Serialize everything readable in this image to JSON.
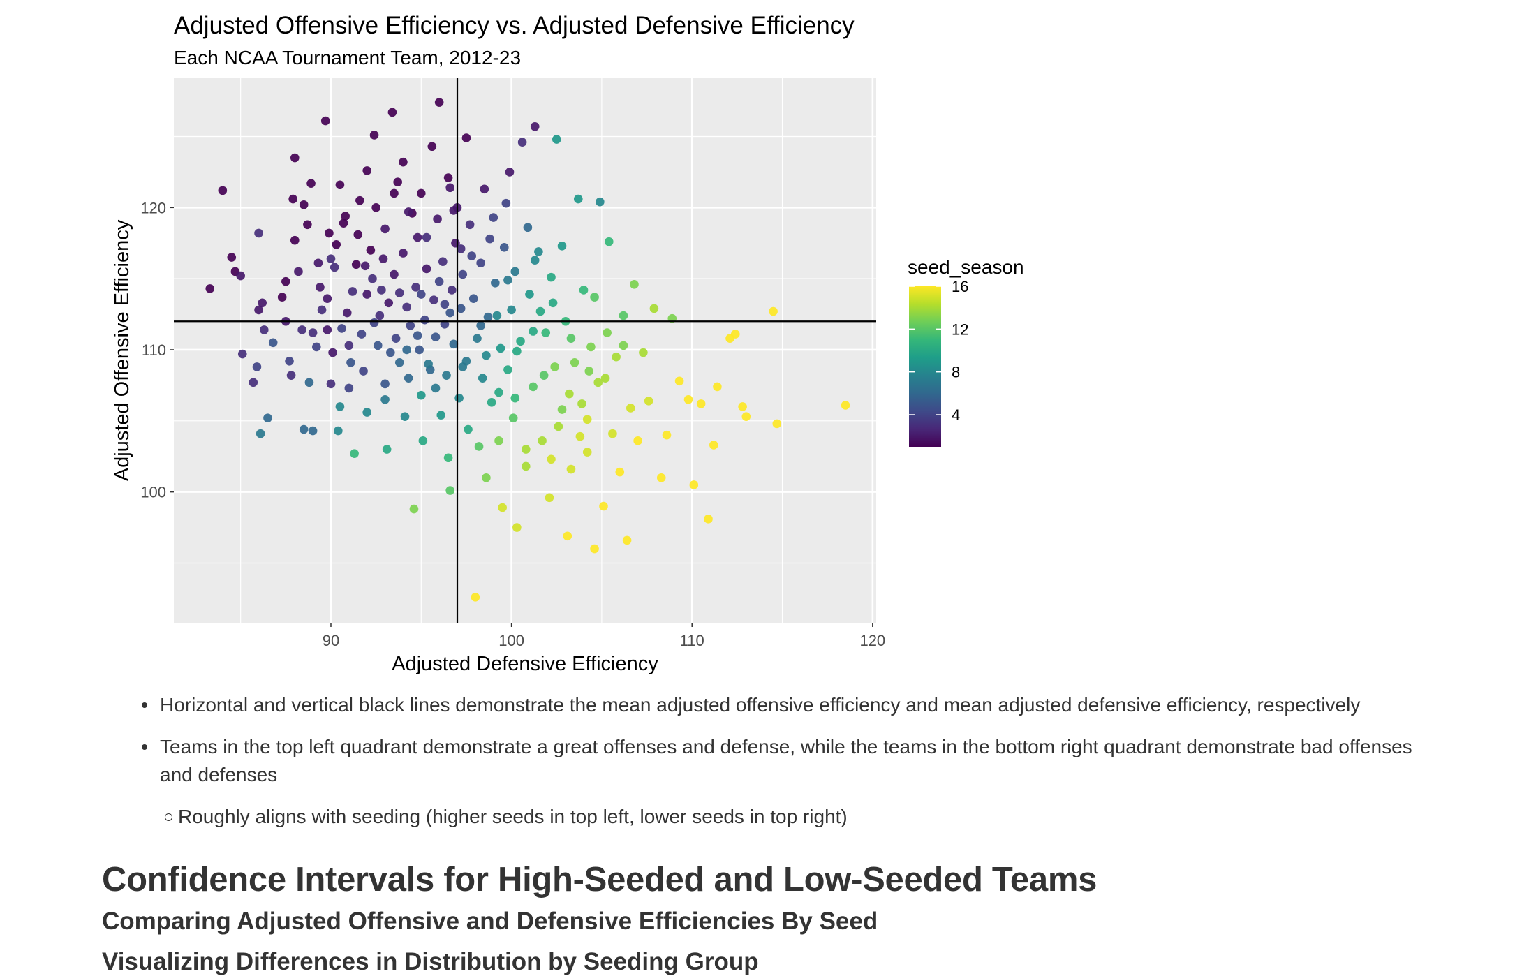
{
  "chart_data": {
    "type": "scatter",
    "title": "Adjusted Offensive Efficiency vs. Adjusted Defensive Efficiency",
    "subtitle": "Each NCAA Tournament Team, 2012-23",
    "xlabel": "Adjusted Defensive Efficiency",
    "ylabel": "Adjusted Offensive Efficiency",
    "xlim": [
      81.3,
      120.2
    ],
    "ylim": [
      90.8,
      129.1
    ],
    "xticks": [
      90,
      100,
      110,
      120
    ],
    "yticks": [
      100,
      110,
      120
    ],
    "grid": true,
    "mean_lines": {
      "x": 97.0,
      "y": 112.0
    },
    "legend": {
      "title": "seed_season",
      "type": "colorbar",
      "position": "right",
      "min": 1,
      "max": 16,
      "ticks": [
        4,
        8,
        12,
        16
      ],
      "colormap": "viridis",
      "colors": [
        "#440154",
        "#482878",
        "#3e4a89",
        "#31688e",
        "#26828e",
        "#1f9e89",
        "#35b779",
        "#6ece58",
        "#b5de2b",
        "#fde725"
      ]
    },
    "points": [
      [
        83.3,
        114.3,
        1
      ],
      [
        84.0,
        121.2,
        1
      ],
      [
        84.5,
        116.5,
        1
      ],
      [
        84.7,
        115.5,
        1
      ],
      [
        85.0,
        115.2,
        2
      ],
      [
        85.1,
        109.7,
        3
      ],
      [
        85.7,
        107.7,
        3
      ],
      [
        85.9,
        108.8,
        4
      ],
      [
        86.0,
        112.8,
        2
      ],
      [
        86.0,
        118.2,
        3
      ],
      [
        86.2,
        113.3,
        2
      ],
      [
        86.3,
        111.4,
        3
      ],
      [
        86.1,
        104.1,
        7
      ],
      [
        86.5,
        105.2,
        6
      ],
      [
        86.8,
        110.5,
        5
      ],
      [
        87.3,
        113.7,
        1
      ],
      [
        87.5,
        112.0,
        2
      ],
      [
        87.5,
        114.8,
        1
      ],
      [
        87.7,
        109.2,
        4
      ],
      [
        87.8,
        108.2,
        3
      ],
      [
        87.9,
        120.6,
        1
      ],
      [
        88.0,
        117.7,
        1
      ],
      [
        88.0,
        123.5,
        1
      ],
      [
        88.4,
        111.4,
        3
      ],
      [
        88.5,
        120.2,
        1
      ],
      [
        88.5,
        104.4,
        6
      ],
      [
        88.7,
        118.8,
        1
      ],
      [
        88.8,
        107.7,
        6
      ],
      [
        88.9,
        121.7,
        1
      ],
      [
        89.0,
        104.3,
        6
      ],
      [
        89.2,
        110.2,
        4
      ],
      [
        89.3,
        116.1,
        2
      ],
      [
        89.4,
        114.4,
        2
      ],
      [
        89.5,
        112.8,
        3
      ],
      [
        89.7,
        126.1,
        1
      ],
      [
        89.8,
        111.4,
        2
      ],
      [
        89.9,
        118.2,
        1
      ],
      [
        90.0,
        107.6,
        3
      ],
      [
        90.0,
        116.4,
        3
      ],
      [
        90.1,
        109.8,
        2
      ],
      [
        90.2,
        115.8,
        3
      ],
      [
        90.4,
        104.3,
        8
      ],
      [
        90.5,
        106.0,
        8
      ],
      [
        90.5,
        121.6,
        1
      ],
      [
        90.6,
        111.5,
        4
      ],
      [
        90.7,
        118.9,
        1
      ],
      [
        90.9,
        112.6,
        2
      ],
      [
        91.0,
        107.3,
        4
      ],
      [
        91.0,
        110.3,
        3
      ],
      [
        91.2,
        114.1,
        3
      ],
      [
        91.3,
        102.7,
        11
      ],
      [
        91.4,
        116.0,
        1
      ],
      [
        91.5,
        118.1,
        1
      ],
      [
        91.6,
        120.5,
        1
      ],
      [
        91.7,
        111.1,
        4
      ],
      [
        91.8,
        108.5,
        4
      ],
      [
        92.0,
        113.9,
        2
      ],
      [
        92.0,
        122.6,
        1
      ],
      [
        92.2,
        117.0,
        1
      ],
      [
        92.3,
        115.0,
        3
      ],
      [
        92.4,
        125.1,
        1
      ],
      [
        92.5,
        120.0,
        1
      ],
      [
        92.6,
        110.3,
        5
      ],
      [
        92.7,
        112.4,
        3
      ],
      [
        92.8,
        114.2,
        3
      ],
      [
        93.0,
        107.6,
        5
      ],
      [
        93.0,
        118.5,
        2
      ],
      [
        93.1,
        103.0,
        10
      ],
      [
        93.2,
        113.3,
        2
      ],
      [
        93.4,
        126.7,
        1
      ],
      [
        93.5,
        115.3,
        2
      ],
      [
        93.6,
        110.8,
        4
      ],
      [
        93.7,
        121.8,
        1
      ],
      [
        93.8,
        109.1,
        6
      ],
      [
        94.0,
        116.8,
        2
      ],
      [
        94.0,
        123.2,
        1
      ],
      [
        94.1,
        105.3,
        8
      ],
      [
        94.2,
        113.0,
        3
      ],
      [
        94.3,
        108.0,
        6
      ],
      [
        94.4,
        111.7,
        4
      ],
      [
        94.5,
        119.6,
        1
      ],
      [
        94.6,
        98.8,
        13
      ],
      [
        94.7,
        114.4,
        3
      ],
      [
        94.8,
        117.9,
        2
      ],
      [
        94.9,
        110.0,
        5
      ],
      [
        95.0,
        106.8,
        9
      ],
      [
        95.0,
        121.0,
        1
      ],
      [
        95.1,
        103.6,
        10
      ],
      [
        95.2,
        112.1,
        4
      ],
      [
        95.3,
        115.7,
        2
      ],
      [
        95.5,
        108.6,
        6
      ],
      [
        95.6,
        124.3,
        1
      ],
      [
        95.7,
        113.5,
        3
      ],
      [
        95.8,
        110.9,
        5
      ],
      [
        95.9,
        119.2,
        2
      ],
      [
        96.0,
        127.4,
        1
      ],
      [
        96.1,
        105.4,
        9
      ],
      [
        96.2,
        116.2,
        3
      ],
      [
        96.3,
        111.8,
        4
      ],
      [
        96.4,
        108.2,
        7
      ],
      [
        96.5,
        122.1,
        1
      ],
      [
        96.5,
        102.4,
        11
      ],
      [
        96.6,
        100.1,
        12
      ],
      [
        96.7,
        114.2,
        3
      ],
      [
        96.8,
        110.4,
        6
      ],
      [
        96.9,
        117.5,
        2
      ],
      [
        97.0,
        120.0,
        2
      ],
      [
        97.1,
        106.6,
        8
      ],
      [
        97.2,
        112.9,
        5
      ],
      [
        97.3,
        115.3,
        4
      ],
      [
        97.5,
        124.9,
        1
      ],
      [
        97.5,
        109.2,
        7
      ],
      [
        97.6,
        104.4,
        10
      ],
      [
        97.7,
        118.8,
        3
      ],
      [
        97.9,
        113.6,
        5
      ],
      [
        98.0,
        92.6,
        16
      ],
      [
        98.1,
        110.8,
        7
      ],
      [
        98.3,
        116.1,
        4
      ],
      [
        98.4,
        108.0,
        8
      ],
      [
        98.5,
        121.3,
        2
      ],
      [
        98.6,
        101.0,
        13
      ],
      [
        98.7,
        112.3,
        6
      ],
      [
        98.9,
        106.3,
        10
      ],
      [
        99.0,
        119.3,
        4
      ],
      [
        99.1,
        114.7,
        6
      ],
      [
        99.3,
        103.6,
        13
      ],
      [
        99.4,
        110.1,
        9
      ],
      [
        99.5,
        98.9,
        15
      ],
      [
        99.6,
        117.2,
        5
      ],
      [
        99.8,
        108.6,
        10
      ],
      [
        99.9,
        122.5,
        2
      ],
      [
        100.0,
        112.8,
        8
      ],
      [
        100.1,
        105.2,
        12
      ],
      [
        100.2,
        115.5,
        7
      ],
      [
        100.3,
        97.5,
        15
      ],
      [
        100.5,
        110.6,
        10
      ],
      [
        100.6,
        124.6,
        3
      ],
      [
        100.8,
        101.8,
        14
      ],
      [
        100.9,
        118.6,
        6
      ],
      [
        101.0,
        113.9,
        9
      ],
      [
        101.2,
        107.4,
        12
      ],
      [
        101.3,
        125.7,
        2
      ],
      [
        101.5,
        116.9,
        8
      ],
      [
        101.7,
        103.6,
        14
      ],
      [
        101.9,
        111.2,
        11
      ],
      [
        102.1,
        99.6,
        15
      ],
      [
        102.2,
        115.1,
        10
      ],
      [
        102.4,
        108.8,
        13
      ],
      [
        102.5,
        124.8,
        9
      ],
      [
        102.6,
        104.6,
        14
      ],
      [
        102.8,
        117.3,
        9
      ],
      [
        103.0,
        112.0,
        11
      ],
      [
        103.1,
        96.9,
        16
      ],
      [
        103.3,
        101.6,
        15
      ],
      [
        103.5,
        109.1,
        13
      ],
      [
        103.7,
        120.6,
        9
      ],
      [
        103.9,
        106.2,
        14
      ],
      [
        104.0,
        114.2,
        11
      ],
      [
        104.2,
        102.8,
        15
      ],
      [
        104.4,
        110.2,
        13
      ],
      [
        104.6,
        96.0,
        16
      ],
      [
        104.8,
        107.7,
        14
      ],
      [
        104.9,
        120.4,
        8
      ],
      [
        105.1,
        99.0,
        16
      ],
      [
        105.3,
        111.2,
        13
      ],
      [
        105.4,
        117.6,
        11
      ],
      [
        105.6,
        104.1,
        15
      ],
      [
        105.8,
        109.5,
        14
      ],
      [
        106.0,
        101.4,
        16
      ],
      [
        106.2,
        112.4,
        12
      ],
      [
        106.4,
        96.6,
        16
      ],
      [
        106.6,
        105.9,
        15
      ],
      [
        106.8,
        114.6,
        13
      ],
      [
        107.0,
        103.6,
        16
      ],
      [
        107.3,
        109.8,
        14
      ],
      [
        107.6,
        106.4,
        15
      ],
      [
        107.9,
        112.9,
        14
      ],
      [
        108.3,
        101.0,
        16
      ],
      [
        108.6,
        104.0,
        16
      ],
      [
        108.9,
        112.2,
        13
      ],
      [
        109.3,
        107.8,
        16
      ],
      [
        109.8,
        106.5,
        16
      ],
      [
        110.1,
        100.5,
        16
      ],
      [
        110.5,
        106.2,
        16
      ],
      [
        110.9,
        98.1,
        16
      ],
      [
        111.2,
        103.3,
        16
      ],
      [
        111.4,
        107.4,
        16
      ],
      [
        112.1,
        110.8,
        16
      ],
      [
        112.4,
        111.1,
        16
      ],
      [
        112.8,
        106.0,
        16
      ],
      [
        113.0,
        105.3,
        16
      ],
      [
        114.5,
        112.7,
        16
      ],
      [
        114.7,
        104.8,
        16
      ],
      [
        118.5,
        106.1,
        16
      ],
      [
        89.0,
        111.2,
        3
      ],
      [
        89.8,
        113.6,
        2
      ],
      [
        90.3,
        117.4,
        1
      ],
      [
        91.1,
        109.1,
        5
      ],
      [
        91.9,
        115.9,
        2
      ],
      [
        92.4,
        111.9,
        4
      ],
      [
        92.9,
        116.4,
        2
      ],
      [
        93.3,
        109.8,
        5
      ],
      [
        93.8,
        114.0,
        3
      ],
      [
        94.3,
        119.7,
        2
      ],
      [
        94.8,
        111.0,
        5
      ],
      [
        95.3,
        117.9,
        3
      ],
      [
        95.8,
        107.3,
        7
      ],
      [
        96.3,
        113.2,
        4
      ],
      [
        96.8,
        119.8,
        2
      ],
      [
        97.3,
        108.8,
        7
      ],
      [
        97.8,
        116.6,
        4
      ],
      [
        98.3,
        111.7,
        6
      ],
      [
        98.8,
        117.8,
        4
      ],
      [
        99.3,
        107.0,
        10
      ],
      [
        99.8,
        114.9,
        7
      ],
      [
        100.3,
        109.9,
        10
      ],
      [
        100.8,
        103.0,
        14
      ],
      [
        101.3,
        116.3,
        8
      ],
      [
        101.8,
        108.2,
        12
      ],
      [
        102.3,
        113.3,
        10
      ],
      [
        102.8,
        105.8,
        13
      ],
      [
        103.3,
        110.8,
        12
      ],
      [
        103.8,
        103.9,
        15
      ],
      [
        104.3,
        108.5,
        13
      ],
      [
        92.0,
        105.6,
        8
      ],
      [
        93.0,
        106.5,
        7
      ],
      [
        94.2,
        110.0,
        6
      ],
      [
        95.4,
        109.0,
        7
      ],
      [
        96.0,
        114.8,
        4
      ],
      [
        97.2,
        117.1,
        3
      ],
      [
        98.2,
        103.2,
        12
      ],
      [
        99.2,
        112.4,
        8
      ],
      [
        100.2,
        106.6,
        11
      ],
      [
        101.2,
        111.3,
        10
      ],
      [
        102.2,
        102.3,
        15
      ],
      [
        103.2,
        106.9,
        14
      ],
      [
        104.2,
        105.1,
        15
      ],
      [
        105.2,
        108.0,
        14
      ],
      [
        106.2,
        110.3,
        13
      ],
      [
        88.2,
        115.5,
        2
      ],
      [
        90.8,
        119.4,
        1
      ],
      [
        93.5,
        121.0,
        1
      ],
      [
        96.6,
        121.4,
        2
      ],
      [
        99.7,
        120.3,
        4
      ],
      [
        95.0,
        113.9,
        4
      ],
      [
        96.6,
        112.6,
        5
      ],
      [
        98.6,
        109.6,
        8
      ],
      [
        101.6,
        112.7,
        10
      ],
      [
        104.6,
        113.7,
        12
      ]
    ]
  },
  "notes": {
    "bullet1": "Horizontal and vertical black lines demonstrate the mean adjusted offensive efficiency and mean adjusted defensive efficiency, respectively",
    "bullet2": "Teams in the top left quadrant demonstrate a great offenses and defense, while the teams in the bottom right quadrant demonstrate bad offenses and defenses",
    "sub_bullet": "Roughly aligns with seeding (higher seeds in top left, lower seeds in top right)"
  },
  "headings": {
    "h2": "Confidence Intervals for High-Seeded and Low-Seeded Teams",
    "h3": "Comparing Adjusted Offensive and Defensive Efficiencies By Seed",
    "h4": "Visualizing Differences in Distribution by Seeding Group"
  }
}
